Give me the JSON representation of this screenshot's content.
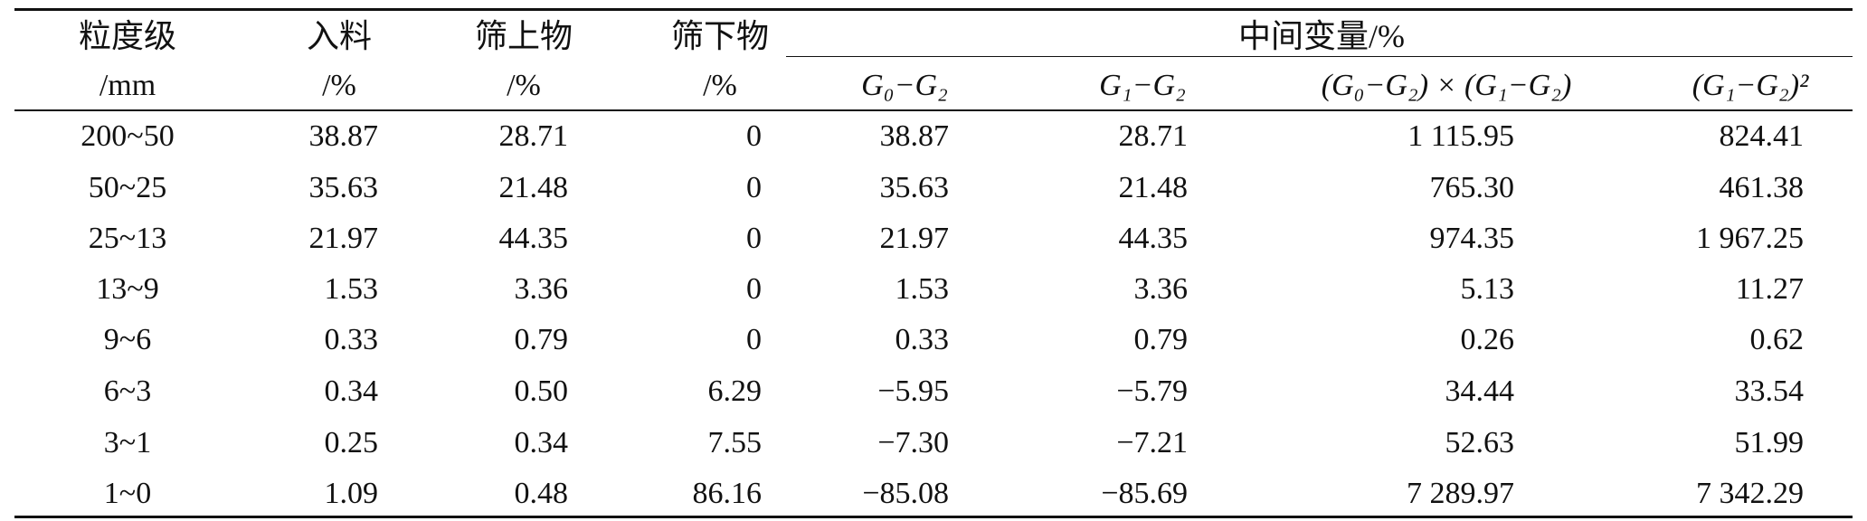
{
  "table": {
    "header": {
      "row1": [
        "粒度级",
        "入料",
        "筛上物",
        "筛下物",
        "中间变量/%"
      ],
      "row2": [
        "/mm",
        "/%",
        "/%",
        "/%",
        "G₀−G₂",
        "G₁−G₂",
        "(G₀−G₂) × (G₁−G₂)",
        "(G₁−G₂)²"
      ]
    },
    "rows": [
      [
        "200~50",
        "38.87",
        "28.71",
        "0",
        "38.87",
        "28.71",
        "1 115.95",
        "824.41"
      ],
      [
        "50~25",
        "35.63",
        "21.48",
        "0",
        "35.63",
        "21.48",
        "765.30",
        "461.38"
      ],
      [
        "25~13",
        "21.97",
        "44.35",
        "0",
        "21.97",
        "44.35",
        "974.35",
        "1 967.25"
      ],
      [
        "13~9",
        "1.53",
        "3.36",
        "0",
        "1.53",
        "3.36",
        "5.13",
        "11.27"
      ],
      [
        "9~6",
        "0.33",
        "0.79",
        "0",
        "0.33",
        "0.79",
        "0.26",
        "0.62"
      ],
      [
        "6~3",
        "0.34",
        "0.50",
        "6.29",
        "−5.95",
        "−5.79",
        "34.44",
        "33.54"
      ],
      [
        "3~1",
        "0.25",
        "0.34",
        "7.55",
        "−7.30",
        "−7.21",
        "52.63",
        "51.99"
      ],
      [
        "1~0",
        "1.09",
        "0.48",
        "86.16",
        "−85.08",
        "−85.69",
        "7 289.97",
        "7 342.29"
      ]
    ]
  }
}
